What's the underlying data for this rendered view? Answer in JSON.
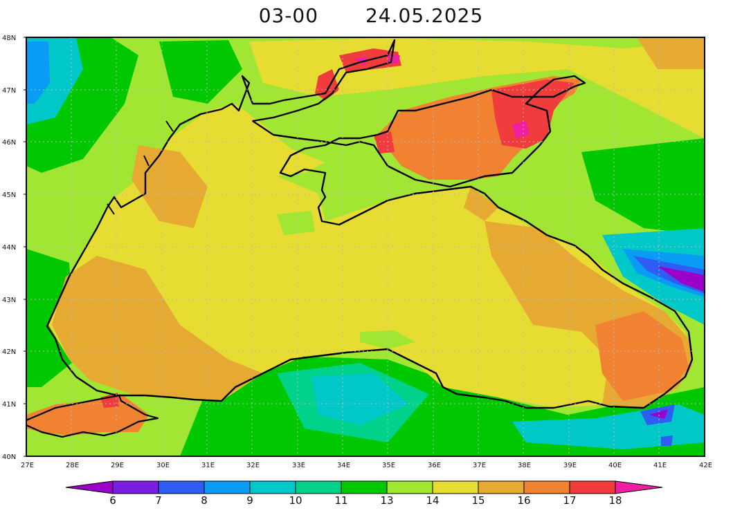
{
  "header": {
    "time_label": "03-00",
    "date_label": "24.05.2025"
  },
  "map": {
    "lat_labels": [
      "48N",
      "47N",
      "46N",
      "45N",
      "44N",
      "43N",
      "42N",
      "41N",
      "40N"
    ],
    "lon_labels": [
      "27E",
      "28E",
      "29E",
      "30E",
      "31E",
      "32E",
      "33E",
      "34E",
      "35E",
      "36E",
      "37E",
      "38E",
      "39E",
      "40E",
      "41E",
      "42E"
    ],
    "lon_range": [
      27,
      42
    ],
    "lat_range": [
      40,
      48
    ],
    "grid": "dotted"
  },
  "colorbar": {
    "labels": [
      "6",
      "7",
      "8",
      "9",
      "10",
      "11",
      "13",
      "14",
      "15",
      "16",
      "17",
      "18"
    ],
    "colors": [
      "#9b00c8",
      "#7a1ee0",
      "#2f5cf2",
      "#0a9cf5",
      "#00c8c8",
      "#00d28c",
      "#00c800",
      "#a0e632",
      "#e6dc32",
      "#e6aa32",
      "#f08232",
      "#f03c3c",
      "#f01ea0"
    ]
  },
  "palette": {
    "sea_warm": "#e6dc32",
    "sea_orange": "#e6aa32",
    "hot": "#f08232",
    "hotter": "#f03c3c",
    "land_green": "#00c800",
    "land_lime": "#a0e632",
    "coast": "#000000"
  }
}
